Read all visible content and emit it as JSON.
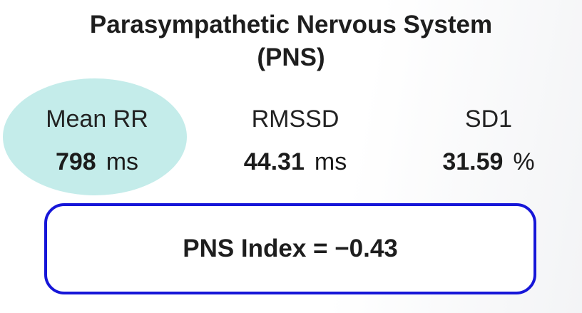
{
  "header": {
    "title_lines": [
      "Parasympathetic Nervous System",
      "(PNS)"
    ]
  },
  "metrics": [
    {
      "label": "Mean RR",
      "value": "798",
      "unit": "ms"
    },
    {
      "label": "RMSSD",
      "value": "44.31",
      "unit": "ms"
    },
    {
      "label": "SD1",
      "value": "31.59",
      "unit": "%"
    }
  ],
  "index_box": {
    "text": "PNS Index = −0.43"
  }
}
